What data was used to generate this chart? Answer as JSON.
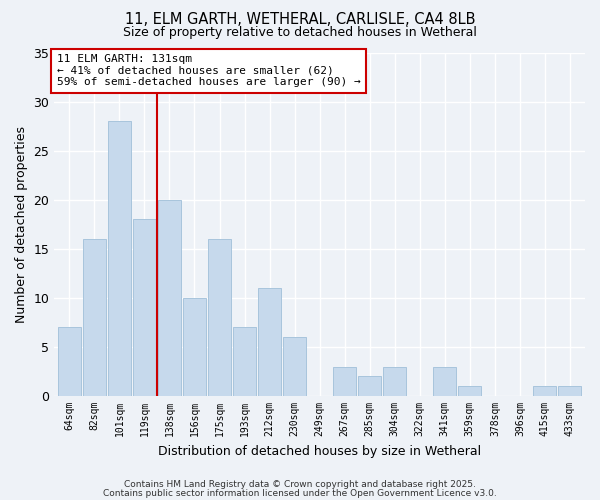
{
  "title1": "11, ELM GARTH, WETHERAL, CARLISLE, CA4 8LB",
  "title2": "Size of property relative to detached houses in Wetheral",
  "xlabel": "Distribution of detached houses by size in Wetheral",
  "ylabel": "Number of detached properties",
  "categories": [
    "64sqm",
    "82sqm",
    "101sqm",
    "119sqm",
    "138sqm",
    "156sqm",
    "175sqm",
    "193sqm",
    "212sqm",
    "230sqm",
    "249sqm",
    "267sqm",
    "285sqm",
    "304sqm",
    "322sqm",
    "341sqm",
    "359sqm",
    "378sqm",
    "396sqm",
    "415sqm",
    "433sqm"
  ],
  "values": [
    7,
    16,
    28,
    18,
    20,
    10,
    16,
    7,
    11,
    6,
    0,
    3,
    2,
    3,
    0,
    3,
    1,
    0,
    0,
    1,
    1
  ],
  "bar_color": "#c6d9ec",
  "bar_edgecolor": "#a8c4dc",
  "marker_color": "#cc0000",
  "annotation_title": "11 ELM GARTH: 131sqm",
  "annotation_line1": "← 41% of detached houses are smaller (62)",
  "annotation_line2": "59% of semi-detached houses are larger (90) →",
  "annotation_box_edgecolor": "#cc0000",
  "annotation_box_facecolor": "#ffffff",
  "ylim": [
    0,
    35
  ],
  "yticks": [
    0,
    5,
    10,
    15,
    20,
    25,
    30,
    35
  ],
  "background_color": "#eef2f7",
  "grid_color": "#ffffff",
  "footer1": "Contains HM Land Registry data © Crown copyright and database right 2025.",
  "footer2": "Contains public sector information licensed under the Open Government Licence v3.0."
}
